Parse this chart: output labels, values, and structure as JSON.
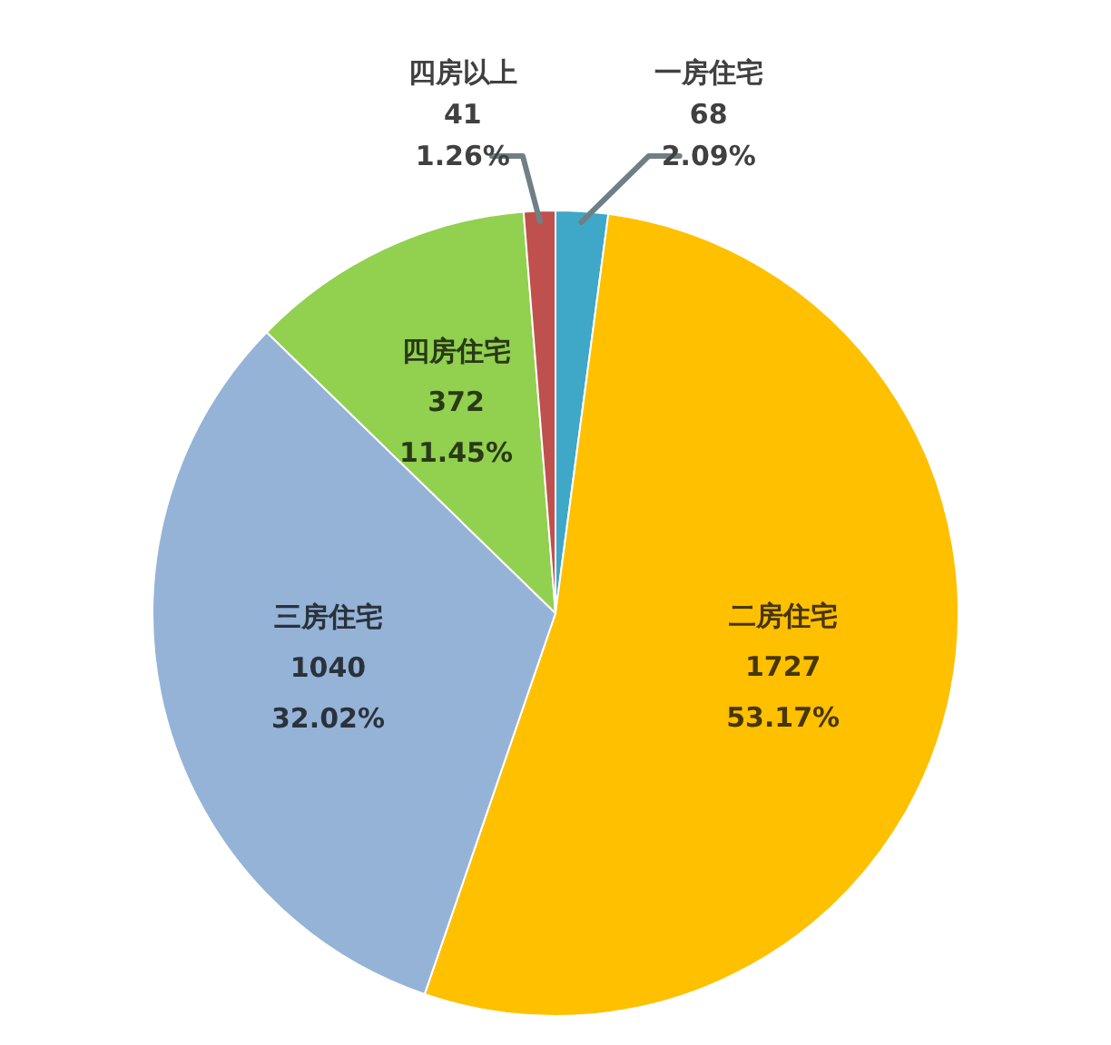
{
  "chart_data": {
    "type": "pie",
    "categories": [
      "一房住宅",
      "二房住宅",
      "三房住宅",
      "四房住宅",
      "四房以上"
    ],
    "values": [
      68,
      1727,
      1040,
      372,
      41
    ],
    "colors": [
      "#3fa7c8",
      "#ffc000",
      "#95b3d7",
      "#92d050",
      "#c0504d"
    ],
    "data_labels": true,
    "annotations": [
      "2.09%",
      "53.17%",
      "32.02%",
      "11.45%",
      "1.26%"
    ]
  }
}
